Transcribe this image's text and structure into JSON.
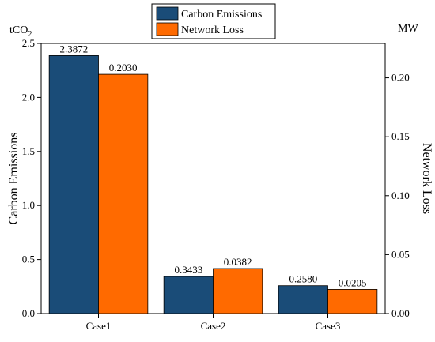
{
  "chart_data": {
    "type": "bar",
    "categories": [
      "Case1",
      "Case2",
      "Case3"
    ],
    "series": [
      {
        "name": "Carbon Emissions",
        "axis": "left",
        "color": "#1a4c78",
        "values": [
          2.3872,
          0.3433,
          0.258
        ],
        "labels": [
          "2.3872",
          "0.3433",
          "0.2580"
        ]
      },
      {
        "name": "Network Loss",
        "axis": "right",
        "color": "#ff6a00",
        "values": [
          0.203,
          0.0382,
          0.0205
        ],
        "labels": [
          "0.2030",
          "0.0382",
          "0.0205"
        ]
      }
    ],
    "y_left": {
      "label": "Carbon Emissions",
      "unit_main": "tCO",
      "unit_sub": "2",
      "lim": [
        0,
        2.5
      ],
      "ticks": [
        0.0,
        0.5,
        1.0,
        1.5,
        2.0,
        2.5
      ],
      "tick_labels": [
        "0.0",
        "0.5",
        "1.0",
        "1.5",
        "2.0",
        "2.5"
      ]
    },
    "y_right": {
      "label": "Network Loss",
      "unit": "MW",
      "lim": [
        0,
        0.2292
      ],
      "ticks": [
        0.0,
        0.05,
        0.1,
        0.15,
        0.2
      ],
      "tick_labels": [
        "0.00",
        "0.05",
        "0.10",
        "0.15",
        "0.20"
      ]
    },
    "legend_position": "top-center",
    "grid": false
  }
}
